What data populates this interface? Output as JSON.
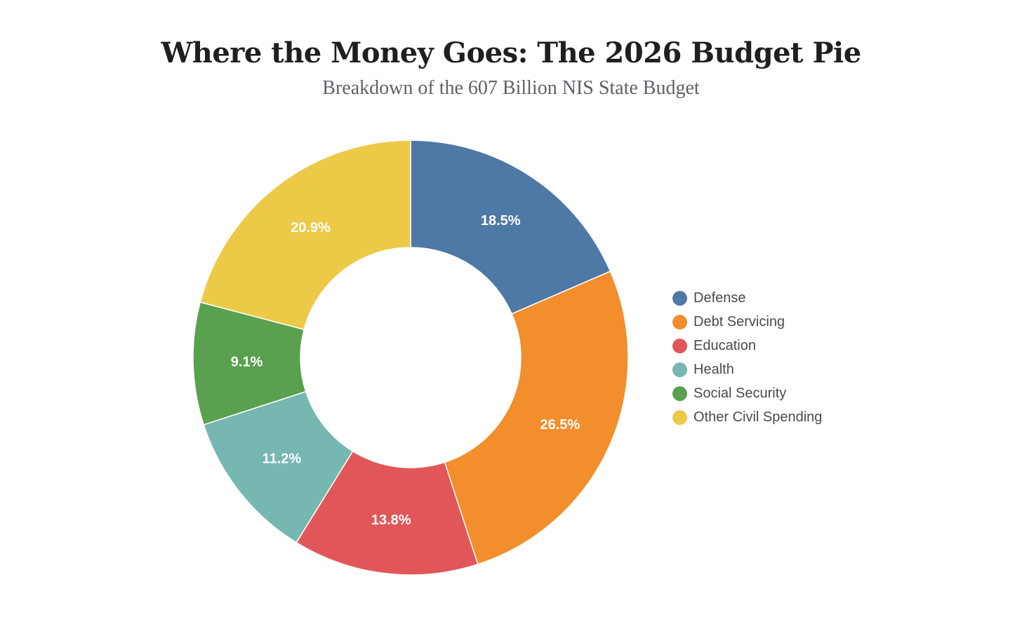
{
  "chart_data": {
    "type": "pie",
    "title": "Where the Money Goes: The 2026 Budget Pie",
    "subtitle": "Breakdown of the 607 Billion NIS State Budget",
    "donut": true,
    "legend_position": "right",
    "slices": [
      {
        "label": "Defense",
        "value": 18.5,
        "display": "18.5%",
        "color": "#4e78a6"
      },
      {
        "label": "Debt Servicing",
        "value": 26.5,
        "display": "26.5%",
        "color": "#f28e2b"
      },
      {
        "label": "Education",
        "value": 13.8,
        "display": "13.8%",
        "color": "#e15759"
      },
      {
        "label": "Health",
        "value": 11.2,
        "display": "11.2%",
        "color": "#76b7b1"
      },
      {
        "label": "Social Security",
        "value": 9.1,
        "display": "9.1%",
        "color": "#59a14f"
      },
      {
        "label": "Other Civil Spending",
        "value": 20.9,
        "display": "20.9%",
        "color": "#edc948"
      }
    ]
  }
}
